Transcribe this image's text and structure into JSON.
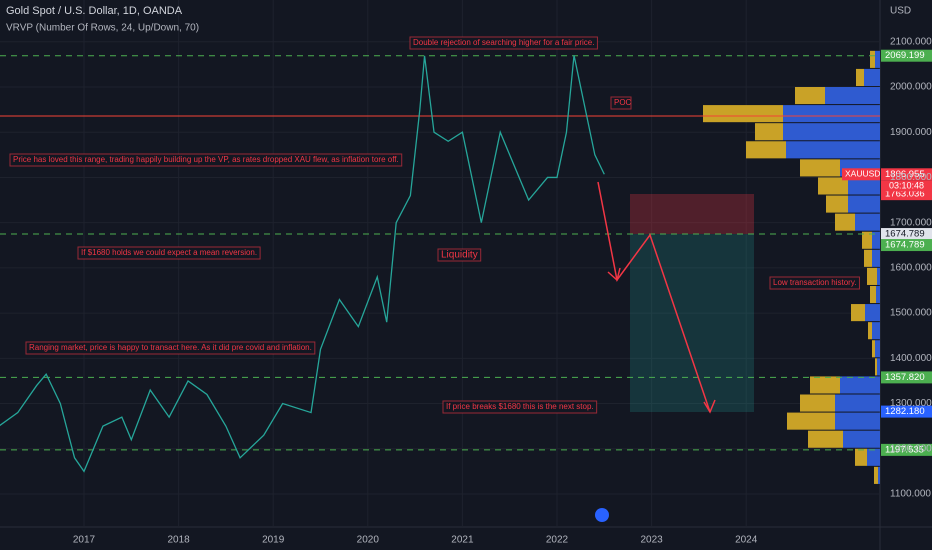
{
  "header": {
    "title": "Gold Spot / U.S. Dollar, 1D, OANDA",
    "indicator": "VRVP (Number Of Rows, 24, Up/Down, 70)",
    "currency": "USD"
  },
  "axis": {
    "yticks": [
      {
        "value": 2100,
        "label": "2100.000"
      },
      {
        "value": 2000,
        "label": "2000.000"
      },
      {
        "value": 1900,
        "label": "1900.000"
      },
      {
        "value": 1800,
        "label": "1800.000"
      },
      {
        "value": 1700,
        "label": "1700.000"
      },
      {
        "value": 1600,
        "label": "1600.000"
      },
      {
        "value": 1500,
        "label": "1500.000"
      },
      {
        "value": 1400,
        "label": "1400.000"
      },
      {
        "value": 1300,
        "label": "1300.000"
      },
      {
        "value": 1200,
        "label": "1200.000"
      },
      {
        "value": 1100,
        "label": "1100.000"
      }
    ],
    "xticks": [
      2017,
      2018,
      2019,
      2020,
      2021,
      2022,
      2023,
      2024
    ]
  },
  "price": {
    "x": [
      2016.1,
      2016.3,
      2016.5,
      2016.6,
      2016.75,
      2016.9,
      2017.0,
      2017.2,
      2017.4,
      2017.5,
      2017.7,
      2017.9,
      2018.1,
      2018.3,
      2018.5,
      2018.65,
      2018.9,
      2019.1,
      2019.4,
      2019.5,
      2019.7,
      2019.9,
      2020.1,
      2020.2,
      2020.3,
      2020.45,
      2020.55,
      2020.6,
      2020.7,
      2020.85,
      2021.0,
      2021.2,
      2021.4,
      2021.6,
      2021.7,
      2021.9,
      2022.0,
      2022.1,
      2022.18,
      2022.3,
      2022.4,
      2022.5
    ],
    "values": [
      1250,
      1280,
      1340,
      1365,
      1300,
      1180,
      1150,
      1250,
      1270,
      1220,
      1330,
      1270,
      1350,
      1320,
      1250,
      1180,
      1230,
      1300,
      1280,
      1420,
      1530,
      1470,
      1580,
      1480,
      1700,
      1760,
      1950,
      2069,
      1900,
      1880,
      1900,
      1700,
      1900,
      1800,
      1750,
      1800,
      1800,
      1900,
      2070,
      1950,
      1850,
      1807
    ],
    "color": "#26a69a"
  },
  "levels": [
    {
      "value": 2069.199,
      "color": "#4caf50"
    },
    {
      "value": 1674.789,
      "color": "#4caf50"
    },
    {
      "value": 1357.82,
      "color": "#4caf50"
    },
    {
      "value": 1197.535,
      "color": "#4caf50"
    }
  ],
  "poc": {
    "value": 1936,
    "color": "#f44336",
    "label": "POC"
  },
  "volume_profile": {
    "up_color": "#c9a227",
    "down_color": "#2f5bd0",
    "row_low": [
      2040,
      2000,
      1960,
      1920,
      1880,
      1840,
      1800,
      1760,
      1720,
      1680,
      1640,
      1600,
      1560,
      1520,
      1480,
      1440,
      1400,
      1360,
      1320,
      1280,
      1240,
      1200,
      1160,
      1120
    ],
    "up": [
      5,
      8,
      30,
      80,
      28,
      40,
      40,
      30,
      22,
      20,
      10,
      8,
      10,
      6,
      14,
      4,
      3,
      2,
      30,
      35,
      48,
      35,
      12,
      4
    ],
    "down": [
      5,
      16,
      55,
      97,
      97,
      94,
      40,
      32,
      32,
      25,
      8,
      8,
      3,
      4,
      15,
      8,
      5,
      3,
      40,
      45,
      45,
      37,
      13,
      2
    ]
  },
  "tags": [
    {
      "value": 2069.199,
      "label": "2069.199",
      "color": "#4caf50"
    },
    {
      "value": 1806.955,
      "label": "1806.955",
      "color": "#f23645"
    },
    {
      "value": 1763.036,
      "label": "1763.036",
      "color": "#f23645"
    },
    {
      "value": 1674.789,
      "label": "1674.789",
      "color": "#e0e3eb"
    },
    {
      "value": 1674.789,
      "label": "1674.789",
      "color": "#4caf50"
    },
    {
      "value": 1357.82,
      "label": "1357.820",
      "color": "#4caf50"
    },
    {
      "value": 1282.18,
      "label": "1282.180",
      "color": "#2962ff"
    },
    {
      "value": 1197.535,
      "label": "1197.535",
      "color": "#4caf50"
    }
  ],
  "symbol": "XAUUSD",
  "countdown": "03:10:48",
  "annotations": [
    "Double rejection of searching higher for a fair price.",
    "Price has loved this range, trading happily building up the VP, as rates dropped XAU flew, as inflation tore off.",
    "If $1680 holds we could expect a mean reversion.",
    "Liquidity",
    "Low transaction history.",
    "Ranging market, price is happy to transact here. As it did pre covid and inflation.",
    "If price breaks $1680 this is the next stop."
  ]
}
